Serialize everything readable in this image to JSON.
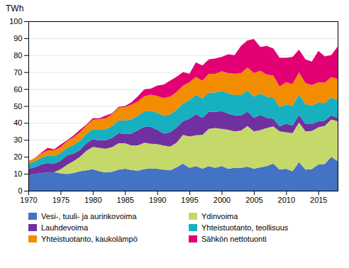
{
  "chart_data": {
    "type": "area",
    "stacked": true,
    "title": "TWh",
    "x": [
      1970,
      1971,
      1972,
      1973,
      1974,
      1975,
      1976,
      1977,
      1978,
      1979,
      1980,
      1981,
      1982,
      1983,
      1984,
      1985,
      1986,
      1987,
      1988,
      1989,
      1990,
      1991,
      1992,
      1993,
      1994,
      1995,
      1996,
      1997,
      1998,
      1999,
      2000,
      2001,
      2002,
      2003,
      2004,
      2005,
      2006,
      2007,
      2008,
      2009,
      2010,
      2011,
      2012,
      2013,
      2014,
      2015,
      2016,
      2017,
      2018
    ],
    "series": [
      {
        "name": "Vesi-, tuuli- ja aurinkovoima",
        "color": "#4472C4",
        "values": [
          9.5,
          9.8,
          10.5,
          10.8,
          11.0,
          10.2,
          9.8,
          10.5,
          11.5,
          12.0,
          12.8,
          11.5,
          10.8,
          11.2,
          12.5,
          13.0,
          12.2,
          11.8,
          12.8,
          13.2,
          13.0,
          12.5,
          12.0,
          13.8,
          16.0,
          13.5,
          14.5,
          13.0,
          14.5,
          13.5,
          14.5,
          13.0,
          13.5,
          13.5,
          14.2,
          13.0,
          13.8,
          14.5,
          16.0,
          12.5,
          13.0,
          11.5,
          16.8,
          12.5,
          12.8,
          15.5,
          15.8,
          20.0,
          17.5
        ]
      },
      {
        "name": "Ydinvoima",
        "color": "#C5D96A",
        "values": [
          0,
          0,
          0,
          0,
          0,
          2.5,
          5.5,
          7.0,
          8.5,
          11.5,
          13.0,
          13.8,
          14.0,
          14.5,
          15.5,
          15.0,
          14.5,
          15.0,
          15.5,
          14.5,
          14.5,
          14.2,
          14.0,
          14.5,
          17.0,
          18.5,
          18.2,
          20.0,
          22.0,
          23.5,
          22.0,
          23.0,
          21.5,
          22.0,
          24.0,
          22.0,
          22.0,
          22.5,
          22.0,
          22.5,
          21.5,
          22.5,
          23.5,
          22.5,
          22.5,
          22.0,
          22.5,
          22.0,
          23.5
        ]
      },
      {
        "name": "Lauhdevoima",
        "color": "#7030A0",
        "values": [
          3.5,
          4.0,
          5.0,
          5.5,
          5.0,
          5.0,
          5.5,
          4.5,
          4.0,
          4.5,
          4.5,
          4.5,
          5.0,
          5.5,
          6.0,
          5.5,
          7.0,
          9.0,
          9.5,
          10.0,
          8.5,
          7.0,
          8.5,
          9.0,
          8.0,
          10.5,
          12.5,
          10.0,
          10.0,
          9.5,
          10.5,
          9.5,
          9.5,
          9.0,
          8.5,
          8.0,
          9.0,
          6.0,
          4.5,
          3.0,
          5.0,
          4.5,
          4.5,
          4.5,
          4.0,
          3.5,
          3.0,
          2.5,
          2.0
        ]
      },
      {
        "name": "Yhteistuotanto, teollisuus",
        "color": "#17B0C0",
        "values": [
          3.0,
          3.5,
          4.0,
          4.5,
          4.5,
          4.5,
          4.5,
          5.0,
          5.5,
          5.5,
          6.0,
          6.5,
          6.5,
          7.0,
          7.5,
          8.0,
          8.5,
          8.5,
          9.0,
          9.5,
          10.0,
          10.5,
          10.5,
          10.5,
          10.5,
          11.0,
          11.5,
          11.5,
          11.5,
          11.5,
          12.0,
          12.0,
          12.0,
          12.0,
          12.5,
          12.5,
          12.5,
          12.5,
          12.5,
          11.5,
          11.5,
          11.5,
          12.0,
          11.5,
          11.0,
          11.0,
          10.5,
          10.5,
          10.5
        ]
      },
      {
        "name": "Yhteistuotanto, kaukolämpö",
        "color": "#F28C00",
        "values": [
          1.5,
          2.0,
          2.5,
          3.0,
          3.5,
          3.5,
          4.0,
          4.5,
          5.0,
          5.0,
          5.5,
          6.0,
          6.5,
          7.0,
          7.5,
          8.0,
          8.5,
          8.5,
          9.0,
          9.5,
          10.0,
          10.5,
          10.5,
          10.5,
          10.5,
          10.5,
          10.5,
          10.5,
          11.0,
          11.0,
          11.5,
          12.0,
          12.5,
          13.0,
          13.5,
          14.0,
          13.5,
          13.0,
          13.0,
          12.0,
          13.0,
          13.0,
          13.0,
          12.5,
          12.0,
          12.0,
          12.0,
          12.0,
          12.5
        ]
      },
      {
        "name": "Sähkön nettotuonti",
        "color": "#E20074",
        "values": [
          0,
          0,
          0.5,
          1.5,
          0.5,
          1.5,
          0.5,
          1.0,
          1.5,
          0.5,
          1.0,
          0.5,
          1.5,
          0.5,
          0.5,
          0.5,
          1.5,
          3.0,
          4.0,
          3.5,
          6.0,
          8.0,
          9.5,
          9.0,
          8.0,
          5.0,
          8.5,
          9.0,
          8.5,
          9.0,
          8.5,
          11.0,
          11.0,
          16.0,
          16.0,
          20.0,
          14.0,
          17.0,
          16.0,
          17.0,
          14.5,
          16.0,
          13.5,
          14.0,
          14.0,
          18.5,
          15.5,
          13.0,
          19.0
        ]
      }
    ],
    "xlim": [
      1970,
      2018
    ],
    "xticks": [
      1970,
      1975,
      1980,
      1985,
      1990,
      1995,
      2000,
      2005,
      2010,
      2015
    ],
    "ylim": [
      0,
      100
    ],
    "yticks": [
      0,
      10,
      20,
      30,
      40,
      50,
      60,
      70,
      80,
      90,
      100
    ],
    "grid": true,
    "legend": "bottom"
  }
}
